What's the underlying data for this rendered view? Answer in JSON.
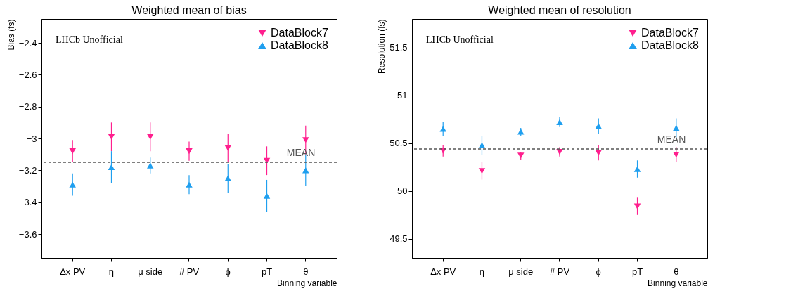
{
  "chart_data": [
    {
      "type": "scatter",
      "title": "Weighted mean of bias",
      "xlabel": "Binning variable",
      "ylabel": "Bias (fs)",
      "categories": [
        "Δx PV",
        "η",
        "μ side",
        "# PV",
        "ϕ",
        "pT",
        "θ"
      ],
      "series": [
        {
          "name": "DataBlock7",
          "color": "#ff1f8e",
          "marker": "triangle-down",
          "values": [
            -3.08,
            -2.99,
            -2.99,
            -3.08,
            -3.06,
            -3.14,
            -3.01
          ],
          "errors": [
            0.07,
            0.09,
            0.09,
            0.06,
            0.09,
            0.09,
            0.09
          ]
        },
        {
          "name": "DataBlock8",
          "color": "#1f9fef",
          "marker": "triangle",
          "values": [
            -3.29,
            -3.18,
            -3.17,
            -3.29,
            -3.25,
            -3.36,
            -3.2
          ],
          "errors": [
            0.07,
            0.1,
            0.05,
            0.06,
            0.09,
            0.1,
            0.1
          ]
        }
      ],
      "ylim": [
        -3.75,
        -2.25
      ],
      "yticks": [
        -3.6,
        -3.4,
        -3.2,
        -3,
        -2.8,
        -2.6,
        -2.4
      ],
      "ref_lines": [
        {
          "axis": "y",
          "value": -3.15,
          "label": "MEAN",
          "color": "#555555",
          "line_style": "dashed"
        }
      ],
      "annotations": [
        "LHCb Unofficial"
      ],
      "legend": "top right",
      "grid": false
    },
    {
      "type": "scatter",
      "title": "Weighted mean of resolution",
      "xlabel": "Binning variable",
      "ylabel": "Resolution (fs)",
      "categories": [
        "Δx PV",
        "η",
        "μ side",
        "# PV",
        "ϕ",
        "pT",
        "θ"
      ],
      "series": [
        {
          "name": "DataBlock7",
          "color": "#ff1f8e",
          "marker": "triangle-down",
          "values": [
            50.42,
            50.21,
            50.37,
            50.41,
            50.4,
            49.84,
            50.38
          ],
          "errors": [
            0.06,
            0.09,
            0.04,
            0.05,
            0.08,
            0.09,
            0.08
          ]
        },
        {
          "name": "DataBlock8",
          "color": "#1f9fef",
          "marker": "triangle",
          "values": [
            50.65,
            50.48,
            50.62,
            50.72,
            50.68,
            50.23,
            50.66
          ],
          "errors": [
            0.07,
            0.1,
            0.04,
            0.05,
            0.08,
            0.09,
            0.1
          ]
        }
      ],
      "ylim": [
        49.3,
        51.8
      ],
      "yticks": [
        49.5,
        50,
        50.5,
        51,
        51.5
      ],
      "ref_lines": [
        {
          "axis": "y",
          "value": 50.44,
          "label": "MEAN",
          "color": "#555555",
          "line_style": "dashed"
        }
      ],
      "annotations": [
        "LHCb Unofficial"
      ],
      "legend": "top right",
      "grid": false
    }
  ]
}
